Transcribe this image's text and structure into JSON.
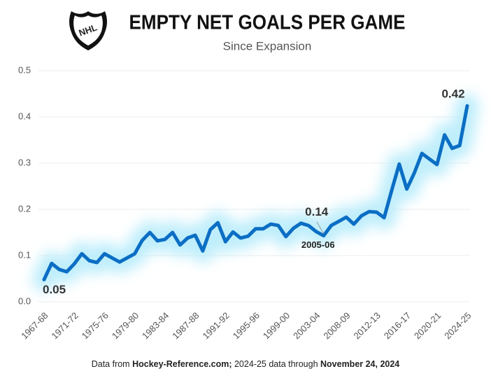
{
  "logo_text": "NHL",
  "chart_data": {
    "type": "line",
    "title": "EMPTY NET GOALS PER GAME",
    "subtitle": "Since Expansion",
    "categories": [
      "1967-68",
      null,
      null,
      null,
      "1971-72",
      null,
      null,
      null,
      "1975-76",
      null,
      null,
      null,
      "1979-80",
      null,
      null,
      null,
      "1983-84",
      null,
      null,
      null,
      "1987-88",
      null,
      null,
      null,
      "1991-92",
      null,
      null,
      null,
      "1995-96",
      null,
      null,
      null,
      "1999-00",
      null,
      null,
      null,
      "2003-04",
      null,
      null,
      null,
      "2008-09",
      null,
      null,
      null,
      "2012-13",
      null,
      null,
      null,
      "2016-17",
      null,
      null,
      null,
      "2020-21",
      null,
      null,
      null,
      "2024-25"
    ],
    "series": [
      {
        "name": "Empty net goals per game",
        "color": "#0b6ec4",
        "values": [
          0.048,
          0.083,
          0.07,
          0.065,
          0.082,
          0.104,
          0.089,
          0.085,
          0.104,
          0.095,
          0.086,
          0.095,
          0.104,
          0.133,
          0.15,
          0.132,
          0.135,
          0.15,
          0.123,
          0.138,
          0.144,
          0.11,
          0.156,
          0.171,
          0.13,
          0.151,
          0.138,
          0.142,
          0.158,
          0.158,
          0.168,
          0.165,
          0.141,
          0.159,
          0.17,
          0.165,
          0.152,
          0.143,
          0.165,
          0.174,
          0.183,
          0.168,
          0.186,
          0.195,
          0.194,
          0.182,
          0.241,
          0.298,
          0.244,
          0.279,
          0.321,
          0.309,
          0.297,
          0.361,
          0.332,
          0.338,
          0.424
        ],
        "value_labels": [
          "0.05",
          null,
          null,
          null,
          null,
          null,
          null,
          null,
          null,
          null,
          null,
          null,
          null,
          null,
          null,
          null,
          null,
          null,
          null,
          null,
          null,
          null,
          null,
          null,
          null,
          null,
          null,
          null,
          null,
          null,
          null,
          null,
          null,
          null,
          null,
          null,
          null,
          "0.14",
          null,
          null,
          null,
          null,
          null,
          null,
          null,
          null,
          null,
          null,
          null,
          null,
          null,
          null,
          null,
          null,
          null,
          null,
          "0.42"
        ]
      }
    ],
    "annotation": "2005-06",
    "ylim": [
      0,
      0.5
    ],
    "yticks": [
      {
        "value": 0,
        "label": "0.0"
      },
      0.1,
      0.2,
      0.3,
      0.4,
      0.5
    ],
    "grid": true,
    "glow_color": "#b8ecfb",
    "source": [
      "Data from ",
      "Hockey-Reference.com;",
      " 2024-25 data through ",
      "November 24, 2024"
    ]
  }
}
